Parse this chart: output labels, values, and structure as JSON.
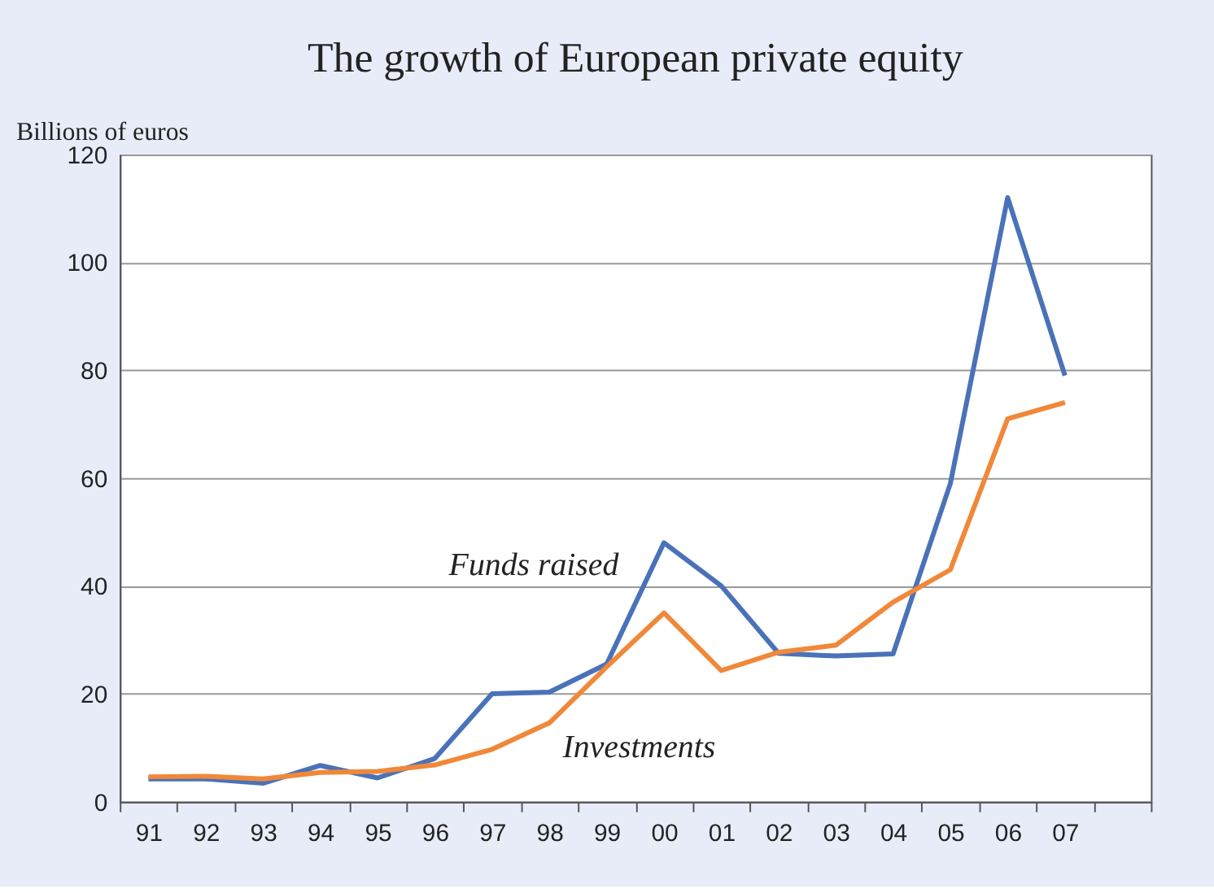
{
  "chart_data": {
    "type": "line",
    "title": "The growth of European private equity",
    "ylabel": "Billions of euros",
    "categories": [
      "91",
      "92",
      "93",
      "94",
      "95",
      "96",
      "97",
      "98",
      "99",
      "00",
      "01",
      "02",
      "03",
      "04",
      "05",
      "06",
      "07",
      null
    ],
    "series": [
      {
        "color": "#4a72b8",
        "values": [
          4.2,
          4.2,
          3.4,
          6.7,
          4.4,
          8,
          20,
          20.3,
          25.5,
          48,
          40,
          27.5,
          27,
          27.4,
          59,
          112,
          79,
          null
        ]
      },
      {
        "color": "#f0883a",
        "values": [
          4.6,
          4.7,
          4.2,
          5.4,
          5.6,
          6.8,
          9.7,
          14.6,
          25,
          35,
          24.3,
          27.7,
          29,
          37,
          43,
          71,
          74,
          null
        ]
      }
    ],
    "annotations": [
      {
        "text": "Funds raised",
        "x": "00",
        "y": 48
      },
      {
        "text": "Investments",
        "x": "99",
        "y": 25
      }
    ],
    "ylim": [
      0,
      120
    ],
    "yticks": [
      0,
      20,
      40,
      60,
      80,
      100,
      120
    ],
    "grid": "y",
    "legend": false,
    "marker": "none",
    "line_style": "solid"
  }
}
